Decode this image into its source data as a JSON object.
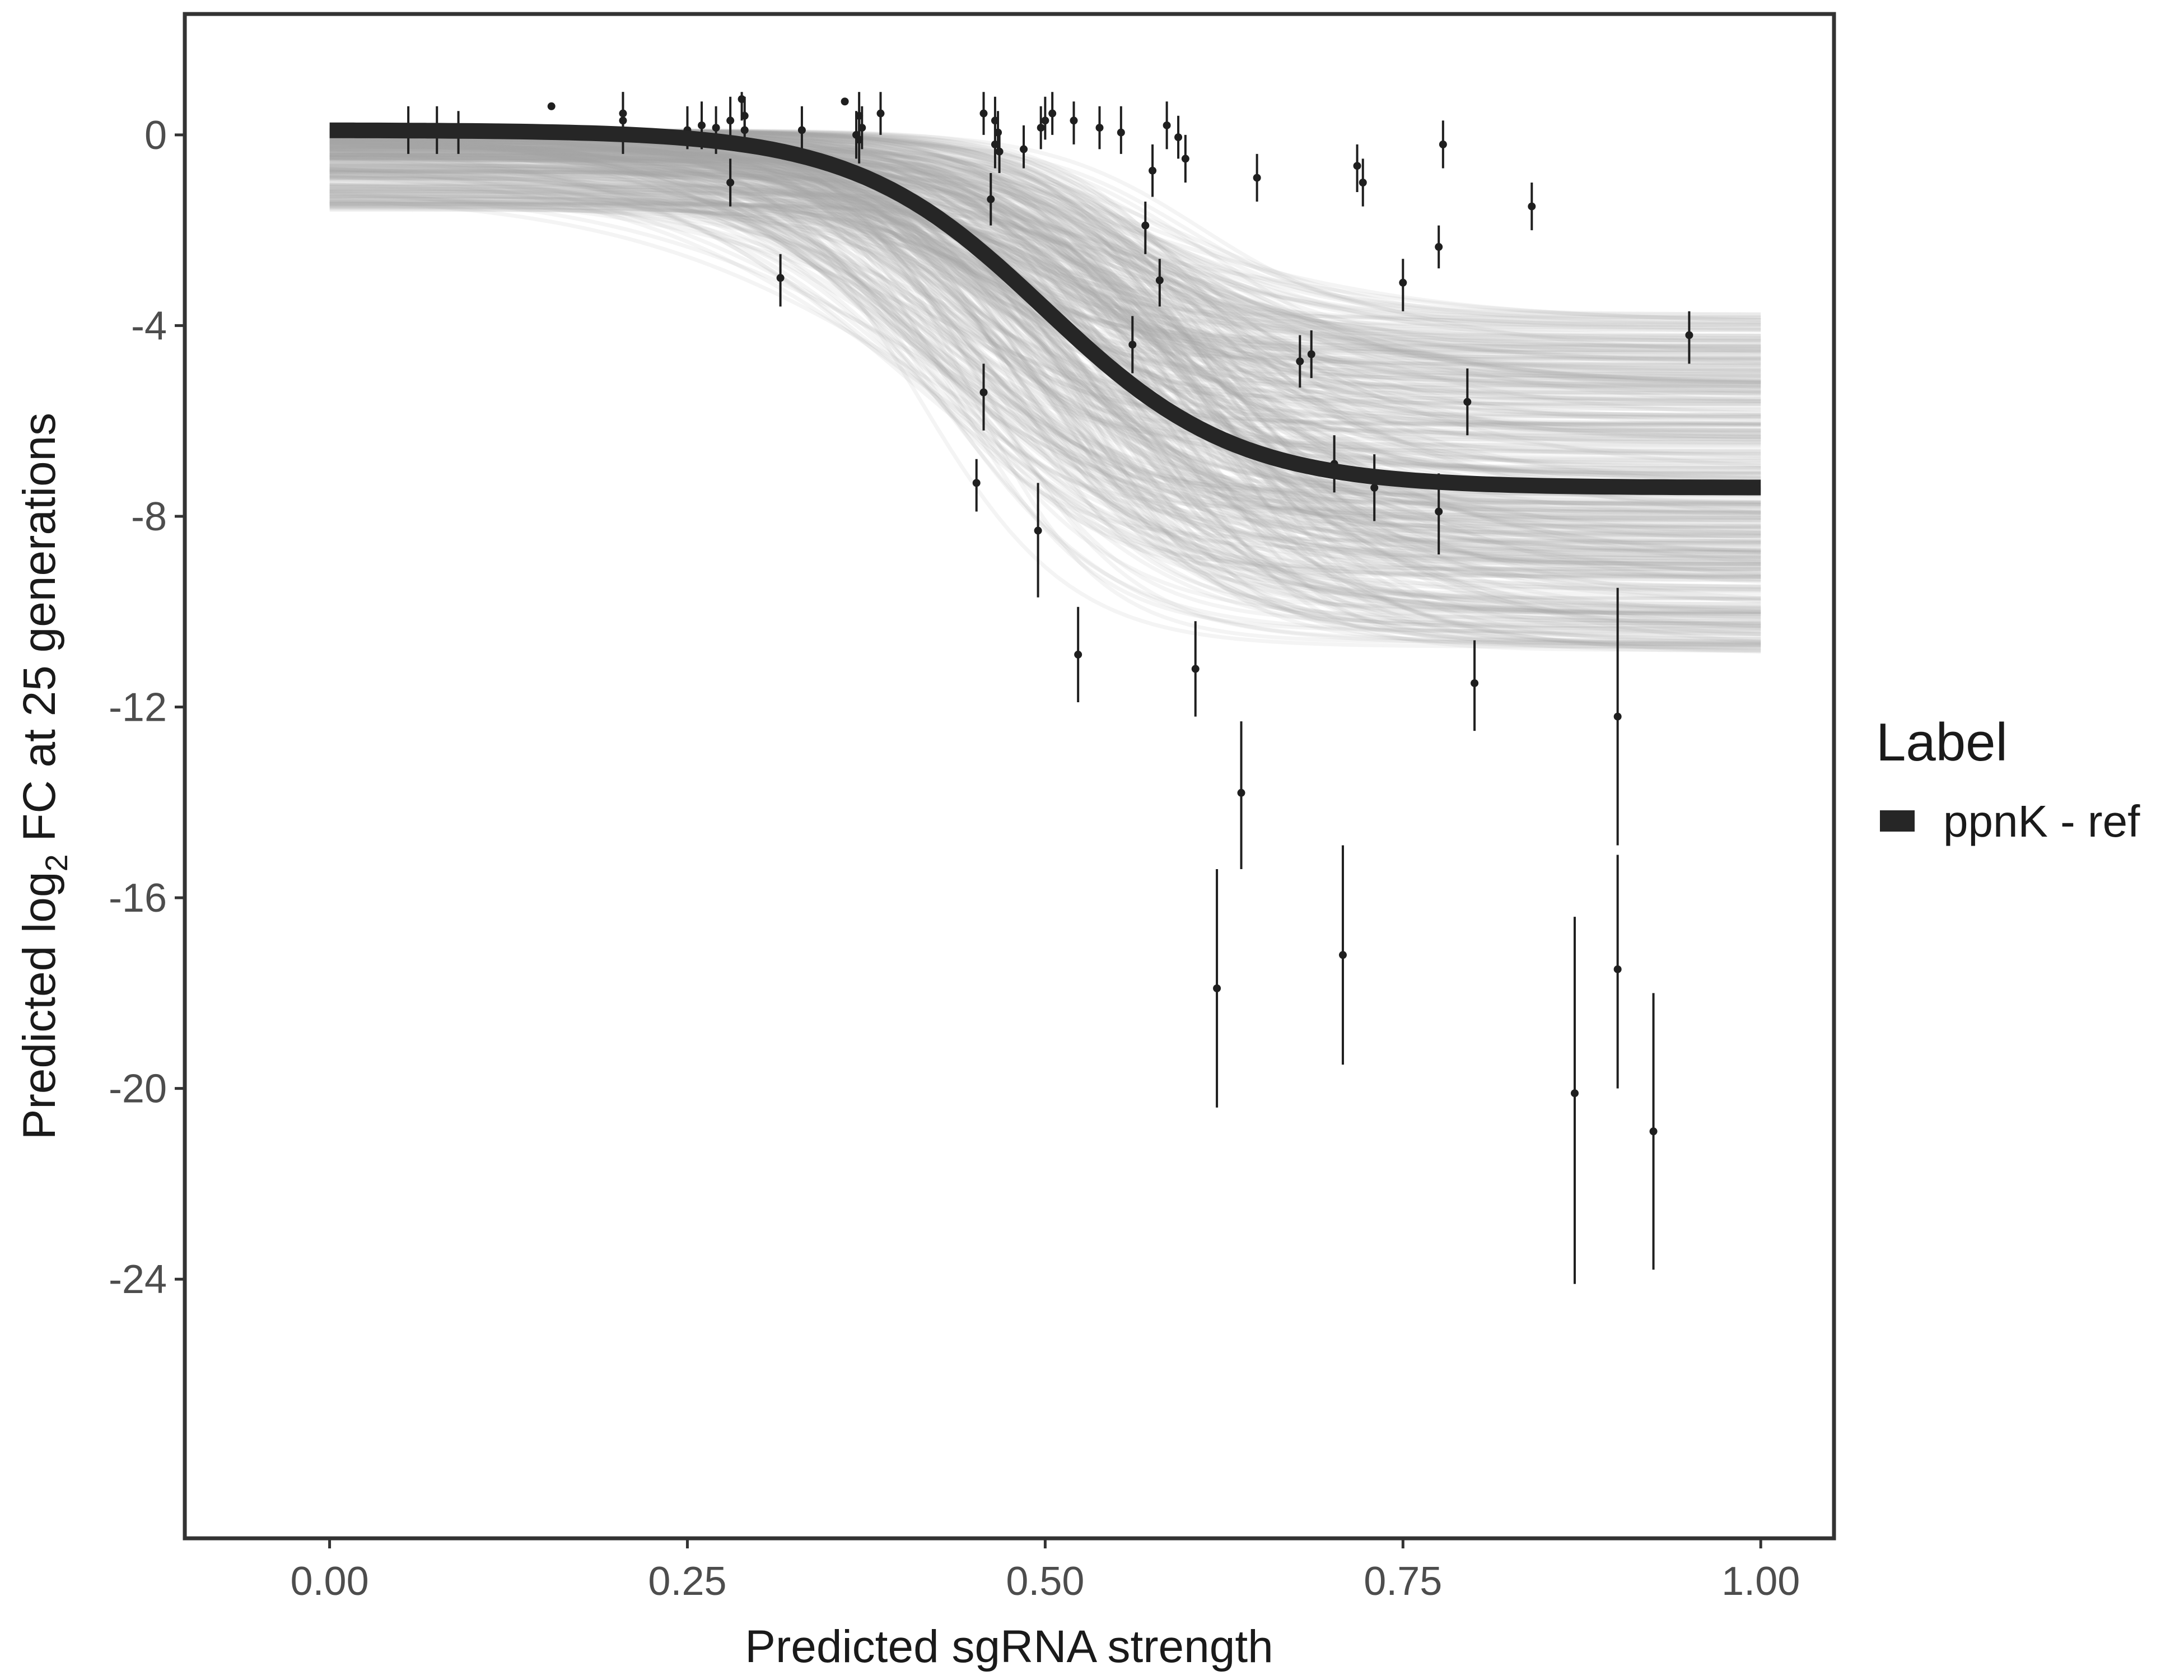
{
  "chart_data": {
    "type": "line",
    "title": "",
    "xlabel": "Predicted sgRNA strength",
    "ylabel": {
      "before": "Predicted  log",
      "subscript": "2",
      "after": " FC at 25 generations"
    },
    "xlim": [
      -0.1,
      1.05
    ],
    "ylim": [
      -29.4,
      2.5
    ],
    "x_ticks": [
      {
        "value": 0.0,
        "label": "0.00"
      },
      {
        "value": 0.25,
        "label": "0.25"
      },
      {
        "value": 0.5,
        "label": "0.50"
      },
      {
        "value": 0.75,
        "label": "0.75"
      },
      {
        "value": 1.0,
        "label": "1.00"
      }
    ],
    "y_ticks": [
      {
        "value": 0,
        "label": "0"
      },
      {
        "value": -4,
        "label": "-4"
      },
      {
        "value": -8,
        "label": "-8"
      },
      {
        "value": -12,
        "label": "-12"
      },
      {
        "value": -16,
        "label": "-16"
      },
      {
        "value": -20,
        "label": "-20"
      },
      {
        "value": -24,
        "label": "-24"
      }
    ],
    "grid": false,
    "legend": {
      "title": "Label",
      "position": "right",
      "entries": [
        {
          "label": "ppnK - ref",
          "color": "#262626"
        }
      ]
    },
    "fit_curve": {
      "name": "ppnK - ref",
      "model": "logistic",
      "top": 0.1,
      "bottom": -7.4,
      "midpoint": 0.5,
      "slope": 15,
      "color": "#262626"
    },
    "posterior_draws": {
      "count": 400,
      "color": "#a6a6a6",
      "top_range": [
        -1.6,
        0.1
      ],
      "bottom_range": [
        -10.9,
        -3.7
      ],
      "midpoint_range": [
        0.4,
        0.62
      ],
      "slope_range": [
        9,
        22
      ]
    },
    "points": [
      {
        "x": 0.055,
        "y": 0.1,
        "lo": -0.4,
        "hi": 0.6
      },
      {
        "x": 0.075,
        "y": 0.1,
        "lo": -0.4,
        "hi": 0.6
      },
      {
        "x": 0.09,
        "y": 0.05,
        "lo": -0.4,
        "hi": 0.5
      },
      {
        "x": 0.155,
        "y": 0.6,
        "lo": 0.6,
        "hi": 0.6
      },
      {
        "x": 0.205,
        "y": 0.3,
        "lo": -0.4,
        "hi": 0.9
      },
      {
        "x": 0.205,
        "y": 0.45,
        "lo": 0.0,
        "hi": 0.9
      },
      {
        "x": 0.25,
        "y": 0.1,
        "lo": -0.3,
        "hi": 0.6
      },
      {
        "x": 0.26,
        "y": 0.2,
        "lo": -0.3,
        "hi": 0.7
      },
      {
        "x": 0.27,
        "y": 0.15,
        "lo": -0.4,
        "hi": 0.6
      },
      {
        "x": 0.28,
        "y": 0.3,
        "lo": -0.2,
        "hi": 0.8
      },
      {
        "x": 0.28,
        "y": -1.0,
        "lo": -1.5,
        "hi": -0.5
      },
      {
        "x": 0.288,
        "y": 0.75,
        "lo": 0.3,
        "hi": 0.9
      },
      {
        "x": 0.29,
        "y": 0.4,
        "lo": 0.0,
        "hi": 0.8
      },
      {
        "x": 0.29,
        "y": 0.1,
        "lo": -0.3,
        "hi": 0.5
      },
      {
        "x": 0.315,
        "y": -3.0,
        "lo": -3.6,
        "hi": -2.5
      },
      {
        "x": 0.33,
        "y": 0.1,
        "lo": -0.4,
        "hi": 0.6
      },
      {
        "x": 0.36,
        "y": 0.7,
        "lo": 0.7,
        "hi": 0.7
      },
      {
        "x": 0.368,
        "y": 0.0,
        "lo": -0.5,
        "hi": 0.5
      },
      {
        "x": 0.37,
        "y": 0.4,
        "lo": -0.1,
        "hi": 0.9
      },
      {
        "x": 0.37,
        "y": -0.1,
        "lo": -0.6,
        "hi": 0.4
      },
      {
        "x": 0.372,
        "y": 0.15,
        "lo": -0.3,
        "hi": 0.6
      },
      {
        "x": 0.385,
        "y": 0.45,
        "lo": 0.0,
        "hi": 0.9
      },
      {
        "x": 0.452,
        "y": -7.3,
        "lo": -7.9,
        "hi": -6.8
      },
      {
        "x": 0.457,
        "y": -5.4,
        "lo": -6.2,
        "hi": -4.8
      },
      {
        "x": 0.457,
        "y": 0.45,
        "lo": 0.0,
        "hi": 0.9
      },
      {
        "x": 0.462,
        "y": -1.35,
        "lo": -1.9,
        "hi": -0.8
      },
      {
        "x": 0.465,
        "y": 0.3,
        "lo": -0.2,
        "hi": 0.8
      },
      {
        "x": 0.465,
        "y": -0.2,
        "lo": -0.7,
        "hi": 0.3
      },
      {
        "x": 0.467,
        "y": 0.05,
        "lo": -0.4,
        "hi": 0.5
      },
      {
        "x": 0.468,
        "y": -0.35,
        "lo": -0.8,
        "hi": 0.1
      },
      {
        "x": 0.485,
        "y": -0.3,
        "lo": -0.7,
        "hi": 0.2
      },
      {
        "x": 0.495,
        "y": -8.3,
        "lo": -9.7,
        "hi": -7.3
      },
      {
        "x": 0.497,
        "y": 0.15,
        "lo": -0.3,
        "hi": 0.6
      },
      {
        "x": 0.5,
        "y": 0.3,
        "lo": -0.1,
        "hi": 0.8
      },
      {
        "x": 0.505,
        "y": 0.45,
        "lo": 0.0,
        "hi": 0.9
      },
      {
        "x": 0.52,
        "y": 0.3,
        "lo": -0.2,
        "hi": 0.7
      },
      {
        "x": 0.523,
        "y": -10.9,
        "lo": -11.9,
        "hi": -9.9
      },
      {
        "x": 0.538,
        "y": 0.15,
        "lo": -0.3,
        "hi": 0.6
      },
      {
        "x": 0.553,
        "y": 0.05,
        "lo": -0.4,
        "hi": 0.6
      },
      {
        "x": 0.561,
        "y": -4.4,
        "lo": -5.0,
        "hi": -3.8
      },
      {
        "x": 0.57,
        "y": -1.9,
        "lo": -2.5,
        "hi": -1.4
      },
      {
        "x": 0.575,
        "y": -0.75,
        "lo": -1.3,
        "hi": -0.2
      },
      {
        "x": 0.58,
        "y": -3.05,
        "lo": -3.6,
        "hi": -2.6
      },
      {
        "x": 0.585,
        "y": 0.2,
        "lo": -0.3,
        "hi": 0.7
      },
      {
        "x": 0.593,
        "y": -0.05,
        "lo": -0.5,
        "hi": 0.4
      },
      {
        "x": 0.598,
        "y": -0.5,
        "lo": -1.0,
        "hi": 0.0
      },
      {
        "x": 0.605,
        "y": -11.2,
        "lo": -12.2,
        "hi": -10.2
      },
      {
        "x": 0.62,
        "y": -17.9,
        "lo": -20.4,
        "hi": -15.4
      },
      {
        "x": 0.637,
        "y": -13.8,
        "lo": -15.4,
        "hi": -12.3
      },
      {
        "x": 0.648,
        "y": -0.9,
        "lo": -1.4,
        "hi": -0.4
      },
      {
        "x": 0.678,
        "y": -4.75,
        "lo": -5.3,
        "hi": -4.2
      },
      {
        "x": 0.686,
        "y": -4.6,
        "lo": -5.1,
        "hi": -4.1
      },
      {
        "x": 0.702,
        "y": -6.9,
        "lo": -7.5,
        "hi": -6.3
      },
      {
        "x": 0.708,
        "y": -17.2,
        "lo": -19.5,
        "hi": -14.9
      },
      {
        "x": 0.718,
        "y": -0.65,
        "lo": -1.2,
        "hi": -0.2
      },
      {
        "x": 0.722,
        "y": -1.0,
        "lo": -1.5,
        "hi": -0.5
      },
      {
        "x": 0.73,
        "y": -7.4,
        "lo": -8.1,
        "hi": -6.7
      },
      {
        "x": 0.75,
        "y": -3.1,
        "lo": -3.7,
        "hi": -2.6
      },
      {
        "x": 0.775,
        "y": -7.9,
        "lo": -8.8,
        "hi": -7.1
      },
      {
        "x": 0.775,
        "y": -2.35,
        "lo": -2.8,
        "hi": -1.9
      },
      {
        "x": 0.778,
        "y": -0.2,
        "lo": -0.7,
        "hi": 0.3
      },
      {
        "x": 0.795,
        "y": -5.6,
        "lo": -6.3,
        "hi": -4.9
      },
      {
        "x": 0.8,
        "y": -11.5,
        "lo": -12.5,
        "hi": -10.6
      },
      {
        "x": 0.84,
        "y": -1.5,
        "lo": -2.0,
        "hi": -1.0
      },
      {
        "x": 0.87,
        "y": -20.1,
        "lo": -24.1,
        "hi": -16.4
      },
      {
        "x": 0.9,
        "y": -12.2,
        "lo": -14.9,
        "hi": -9.5
      },
      {
        "x": 0.9,
        "y": -17.5,
        "lo": -20.0,
        "hi": -15.1
      },
      {
        "x": 0.925,
        "y": -20.9,
        "lo": -23.8,
        "hi": -18.0
      },
      {
        "x": 0.95,
        "y": -4.2,
        "lo": -4.8,
        "hi": -3.7
      }
    ]
  }
}
